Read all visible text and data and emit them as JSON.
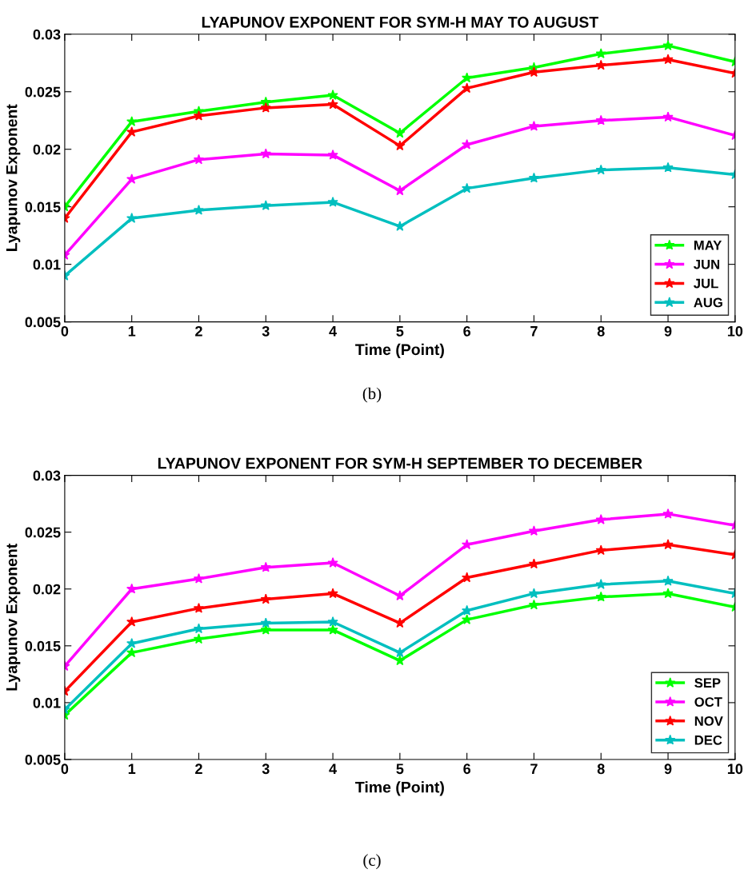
{
  "chart_data": [
    {
      "type": "line",
      "title": "LYAPUNOV EXPONENT FOR SYM-H MAY TO AUGUST",
      "xlabel": "Time (Point)",
      "ylabel": "Lyapunov Exponent",
      "x": [
        0,
        1,
        2,
        3,
        4,
        5,
        6,
        7,
        8,
        9,
        10
      ],
      "series": [
        {
          "name": "MAY",
          "color": "#00ff00",
          "values": [
            0.015,
            0.0224,
            0.0233,
            0.0241,
            0.0247,
            0.0214,
            0.0262,
            0.0271,
            0.0283,
            0.029,
            0.0276
          ]
        },
        {
          "name": "JUN",
          "color": "#ff00ff",
          "values": [
            0.0108,
            0.0174,
            0.0191,
            0.0196,
            0.0195,
            0.0164,
            0.0204,
            0.022,
            0.0225,
            0.0228,
            0.0212
          ]
        },
        {
          "name": "JUL",
          "color": "#ff0000",
          "values": [
            0.014,
            0.0215,
            0.0229,
            0.0236,
            0.0239,
            0.0203,
            0.0253,
            0.0267,
            0.0273,
            0.0278,
            0.0266
          ]
        },
        {
          "name": "AUG",
          "color": "#00bfbf",
          "values": [
            0.009,
            0.014,
            0.0147,
            0.0151,
            0.0154,
            0.0133,
            0.0166,
            0.0175,
            0.0182,
            0.0184,
            0.0178
          ]
        }
      ],
      "xlim": [
        0,
        10
      ],
      "xticks": [
        0,
        1,
        2,
        3,
        4,
        5,
        6,
        7,
        8,
        9,
        10
      ],
      "ylim": [
        0.005,
        0.03
      ],
      "yticks": [
        0.005,
        0.01,
        0.015,
        0.02,
        0.025,
        0.03
      ],
      "grid": false,
      "legend": "bottom right",
      "marker": "star",
      "line_style": "solid",
      "annotations": [
        "(b)"
      ]
    },
    {
      "type": "line",
      "title": "LYAPUNOV EXPONENT FOR SYM-H SEPTEMBER TO DECEMBER",
      "xlabel": "Time (Point)",
      "ylabel": "Lyapunov Exponent",
      "x": [
        0,
        1,
        2,
        3,
        4,
        5,
        6,
        7,
        8,
        9,
        10
      ],
      "series": [
        {
          "name": "SEP",
          "color": "#00ff00",
          "values": [
            0.0089,
            0.0144,
            0.0156,
            0.0164,
            0.0164,
            0.0137,
            0.0173,
            0.0186,
            0.0193,
            0.0196,
            0.0184
          ]
        },
        {
          "name": "OCT",
          "color": "#ff00ff",
          "values": [
            0.0132,
            0.02,
            0.0209,
            0.0219,
            0.0223,
            0.0194,
            0.0239,
            0.0251,
            0.0261,
            0.0266,
            0.0256
          ]
        },
        {
          "name": "NOV",
          "color": "#ff0000",
          "values": [
            0.011,
            0.0171,
            0.0183,
            0.0191,
            0.0196,
            0.017,
            0.021,
            0.0222,
            0.0234,
            0.0239,
            0.023
          ]
        },
        {
          "name": "DEC",
          "color": "#00bfbf",
          "values": [
            0.0094,
            0.0152,
            0.0165,
            0.017,
            0.0171,
            0.0144,
            0.0181,
            0.0196,
            0.0204,
            0.0207,
            0.0196
          ]
        }
      ],
      "xlim": [
        0,
        10
      ],
      "xticks": [
        0,
        1,
        2,
        3,
        4,
        5,
        6,
        7,
        8,
        9,
        10
      ],
      "ylim": [
        0.005,
        0.03
      ],
      "yticks": [
        0.005,
        0.01,
        0.015,
        0.02,
        0.025,
        0.03
      ],
      "grid": false,
      "legend": "bottom right",
      "marker": "star",
      "line_style": "solid",
      "annotations": [
        "(c)"
      ]
    }
  ]
}
